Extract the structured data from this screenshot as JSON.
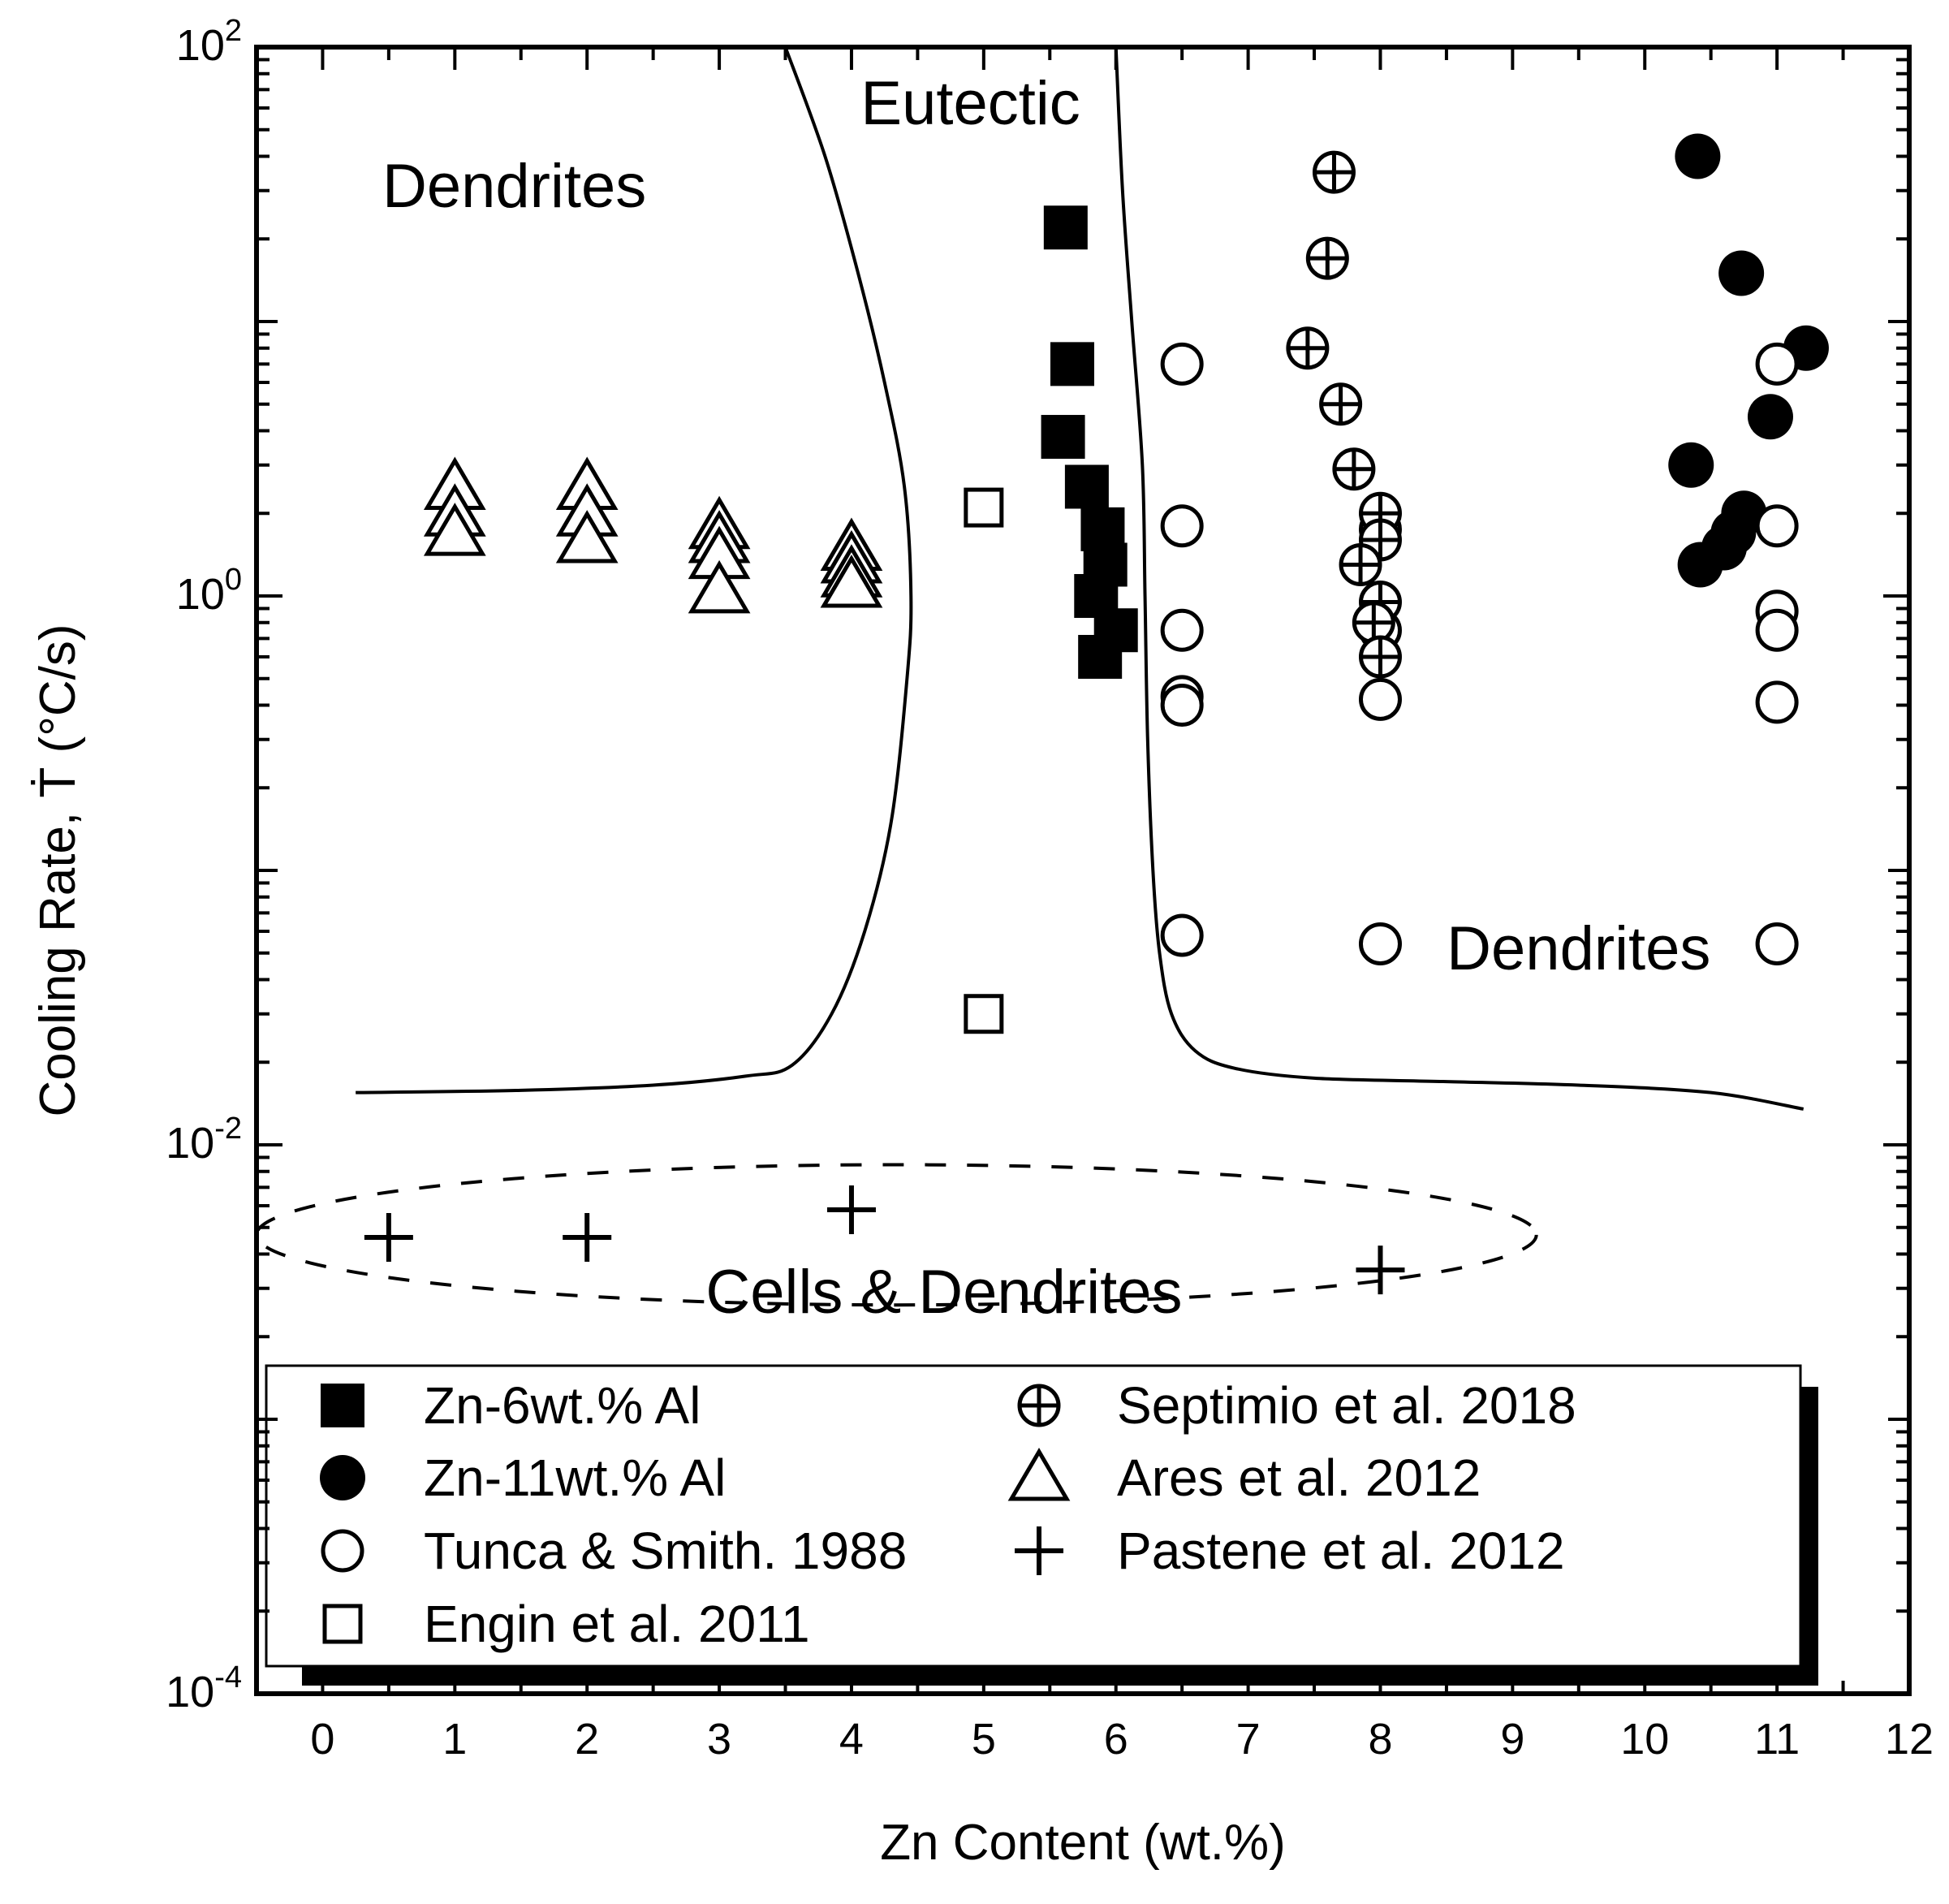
{
  "chart_data": {
    "type": "scatter",
    "title": "",
    "xlabel": "Zn Content (wt.%)",
    "ylabel": "Cooling Rate, Ṫ (°C/s)",
    "xlim": [
      -0.5,
      12
    ],
    "ylim": [
      0.0001,
      100
    ],
    "yscale": "log",
    "xticks": [
      "0",
      "1",
      "2",
      "3",
      "4",
      "5",
      "6",
      "7",
      "8",
      "9",
      "10",
      "11",
      "12"
    ],
    "yticks": [
      {
        "base": "10",
        "exp": "2",
        "value": 100
      },
      {
        "base": "10",
        "exp": "0",
        "value": 1
      },
      {
        "base": "10",
        "exp": "-2",
        "value": 0.01
      },
      {
        "base": "10",
        "exp": "-4",
        "value": 0.0001
      }
    ],
    "regions": [
      {
        "label": "Dendrites",
        "x": 1.45,
        "y": 30
      },
      {
        "label": "Eutectic",
        "x": 4.9,
        "y": 60
      },
      {
        "label": "Dendrites",
        "x": 9.5,
        "y": 0.05
      },
      {
        "label": "Cells & Dendrites",
        "x": 4.7,
        "y": 0.0028
      }
    ],
    "boundaries": [
      {
        "name": "left-boundary",
        "points": [
          [
            0.25,
            0.0155
          ],
          [
            1.5,
            0.0158
          ],
          [
            2.5,
            0.0165
          ],
          [
            3.2,
            0.0178
          ],
          [
            3.55,
            0.0195
          ],
          [
            3.85,
            0.03
          ],
          [
            4.1,
            0.06
          ],
          [
            4.3,
            0.15
          ],
          [
            4.42,
            0.5
          ],
          [
            4.45,
            1.0
          ],
          [
            4.4,
            2.5
          ],
          [
            4.25,
            6
          ],
          [
            4.05,
            15
          ],
          [
            3.8,
            40
          ],
          [
            3.5,
            100
          ]
        ]
      },
      {
        "name": "right-boundary",
        "points": [
          [
            6.0,
            100
          ],
          [
            6.05,
            30
          ],
          [
            6.12,
            10
          ],
          [
            6.2,
            3
          ],
          [
            6.22,
            1
          ],
          [
            6.24,
            0.3
          ],
          [
            6.28,
            0.1
          ],
          [
            6.33,
            0.05
          ],
          [
            6.42,
            0.03
          ],
          [
            6.6,
            0.022
          ],
          [
            6.9,
            0.019
          ],
          [
            7.5,
            0.0175
          ],
          [
            8.5,
            0.017
          ],
          [
            9.5,
            0.0165
          ],
          [
            10.5,
            0.0155
          ],
          [
            11.2,
            0.0135
          ]
        ]
      }
    ],
    "ellipse": {
      "name": "cells-dendrites-region",
      "cx": 4.34,
      "cy": 0.0047,
      "rx": 4.84,
      "ry_log_decades": 0.73
    },
    "series": [
      {
        "name": "Zn-6wt.% Al",
        "marker": "filled-square",
        "points": [
          [
            5.62,
            22
          ],
          [
            5.67,
            7
          ],
          [
            5.6,
            3.8
          ],
          [
            5.78,
            2.5
          ],
          [
            5.9,
            1.75
          ],
          [
            5.92,
            1.3
          ],
          [
            5.85,
            1.0
          ],
          [
            6.0,
            0.75
          ],
          [
            5.88,
            0.6
          ]
        ]
      },
      {
        "name": "Zn-11wt.% Al",
        "marker": "filled-circle",
        "points": [
          [
            10.4,
            40
          ],
          [
            10.73,
            15
          ],
          [
            11.22,
            8
          ],
          [
            10.95,
            4.5
          ],
          [
            10.35,
            3.0
          ],
          [
            10.75,
            2.0
          ],
          [
            10.67,
            1.7
          ],
          [
            10.6,
            1.5
          ],
          [
            10.42,
            1.3
          ]
        ]
      },
      {
        "name": "Tunca & Smith. 1988",
        "marker": "open-circle",
        "points": [
          [
            6.5,
            7
          ],
          [
            6.5,
            1.8
          ],
          [
            6.5,
            0.75
          ],
          [
            6.5,
            0.43
          ],
          [
            6.5,
            0.4
          ],
          [
            6.5,
            0.058
          ],
          [
            8.0,
            1.75
          ],
          [
            8.0,
            0.75
          ],
          [
            8.0,
            0.42
          ],
          [
            8.0,
            0.054
          ],
          [
            11.0,
            7
          ],
          [
            11.0,
            1.8
          ],
          [
            11.0,
            0.88
          ],
          [
            11.0,
            0.75
          ],
          [
            11.0,
            0.41
          ],
          [
            11.0,
            0.054
          ]
        ]
      },
      {
        "name": "Engin et al. 2011",
        "marker": "open-square",
        "points": [
          [
            5.0,
            2.1
          ],
          [
            5.0,
            0.03
          ]
        ]
      },
      {
        "name": "Septimio et al. 2018",
        "marker": "circle-plus",
        "points": [
          [
            7.65,
            35
          ],
          [
            7.6,
            17
          ],
          [
            7.45,
            8
          ],
          [
            7.7,
            5
          ],
          [
            7.8,
            2.9
          ],
          [
            8.0,
            2.0
          ],
          [
            8.0,
            1.6
          ],
          [
            7.85,
            1.3
          ],
          [
            8.0,
            0.95
          ],
          [
            7.95,
            0.8
          ],
          [
            8.0,
            0.6
          ]
        ]
      },
      {
        "name": "Ares et al. 2012",
        "marker": "open-triangle",
        "points": [
          [
            1.0,
            2.5
          ],
          [
            1.0,
            2.0
          ],
          [
            1.0,
            1.7
          ],
          [
            2.0,
            2.5
          ],
          [
            2.0,
            2.0
          ],
          [
            2.0,
            1.6
          ],
          [
            3.0,
            1.8
          ],
          [
            3.0,
            1.6
          ],
          [
            3.0,
            1.4
          ],
          [
            3.0,
            1.05
          ],
          [
            4.0,
            1.5
          ],
          [
            4.0,
            1.35
          ],
          [
            4.0,
            1.2
          ],
          [
            4.0,
            1.1
          ]
        ]
      },
      {
        "name": "Pastene et al. 2012",
        "marker": "plus",
        "points": [
          [
            0.5,
            0.0046
          ],
          [
            2.0,
            0.0046
          ],
          [
            4.0,
            0.0058
          ],
          [
            8.0,
            0.0035
          ]
        ]
      }
    ],
    "legend": {
      "position": "bottom-left",
      "columns": 2,
      "entries": [
        {
          "label": "Zn-6wt.% Al",
          "marker": "filled-square"
        },
        {
          "label": "Zn-11wt.% Al",
          "marker": "filled-circle"
        },
        {
          "label": "Tunca & Smith. 1988",
          "marker": "open-circle"
        },
        {
          "label": "Engin et al. 2011",
          "marker": "open-square"
        },
        {
          "label": "Septimio et al. 2018",
          "marker": "circle-plus"
        },
        {
          "label": "Ares et al. 2012",
          "marker": "open-triangle"
        },
        {
          "label": "Pastene et al. 2012",
          "marker": "plus"
        }
      ]
    }
  }
}
